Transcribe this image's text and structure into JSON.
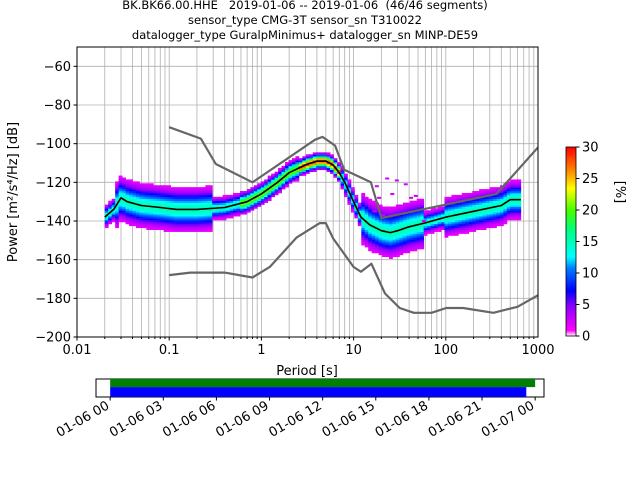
{
  "title_lines": [
    "BK.BK66.00.HHE   2019-01-06 -- 2019-01-06  (46/46 segments)",
    "sensor_type CMG-3T sensor_sn T310022",
    "datalogger_type GuralpMinimus+ datalogger_sn MINP-DE59"
  ],
  "colors": {
    "nlnm_nhnm": "#666666",
    "mode_line": "#000000",
    "coverage_all": "#008000",
    "coverage_used": "#0000ff"
  },
  "chart_data": [
    {
      "type": "heatmap",
      "name": "ppsd",
      "xlabel": "Period [s]",
      "ylabel": "Power [m²/s⁴/Hz] [dB]",
      "xscale": "log",
      "xlim": [
        0.01,
        1000
      ],
      "ylim": [
        -200,
        -50
      ],
      "x_ticks": [
        0.01,
        0.1,
        1,
        10,
        100,
        1000
      ],
      "x_tick_labels": [
        "0.01",
        "0.1",
        "1",
        "10",
        "100",
        "1000"
      ],
      "y_ticks": [
        -200,
        -180,
        -160,
        -140,
        -120,
        -100,
        -80,
        -60
      ],
      "y_tick_labels": [
        "−200",
        "−180",
        "−160",
        "−140",
        "−120",
        "−100",
        "−80",
        "−60"
      ],
      "grid": true,
      "colorbar": {
        "label": "[%]",
        "range": [
          0,
          30
        ],
        "ticks": [
          0,
          5,
          10,
          15,
          20,
          25,
          30
        ],
        "tick_labels": [
          "0",
          "5",
          "10",
          "15",
          "20",
          "25",
          "30"
        ]
      },
      "nhnm": {
        "period": [
          0.1,
          0.22,
          0.32,
          0.8,
          3.8,
          4.6,
          6.3,
          7.9,
          15.4,
          20,
          354.8,
          10000
        ],
        "power": [
          -91.5,
          -97.4,
          -110.5,
          -120,
          -98,
          -96.5,
          -101,
          -113.5,
          -120,
          -138.5,
          -126,
          -48.5
        ]
      },
      "nlnm": {
        "period": [
          0.1,
          0.17,
          0.4,
          0.8,
          1.24,
          2.4,
          4.3,
          5,
          6,
          10,
          12,
          15.6,
          21.9,
          31.6,
          45,
          70,
          101,
          154,
          328,
          600,
          10000
        ],
        "power": [
          -168,
          -166.7,
          -166.7,
          -169.2,
          -163.7,
          -148.6,
          -141.1,
          -141.1,
          -149,
          -163.8,
          -166.2,
          -162.1,
          -177.5,
          -185,
          -187.5,
          -187.5,
          -185,
          -185,
          -187.5,
          -184.4,
          -151.5
        ]
      },
      "mode": {
        "period": [
          0.02,
          0.025,
          0.03,
          0.035,
          0.05,
          0.08,
          0.12,
          0.2,
          0.4,
          0.7,
          1,
          1.5,
          2,
          3,
          4,
          5,
          6,
          7,
          8,
          10,
          12,
          15,
          20,
          25,
          30,
          40,
          60,
          100,
          200,
          400,
          500,
          650
        ],
        "power": [
          -138,
          -134,
          -128,
          -130,
          -132,
          -133,
          -134,
          -134,
          -133,
          -130,
          -126,
          -120,
          -115,
          -111,
          -109,
          -109,
          -111,
          -115,
          -120,
          -130,
          -138,
          -142,
          -145,
          -146,
          -145,
          -143,
          -141,
          -138,
          -135,
          -132,
          -129,
          -129
        ]
      }
    },
    {
      "type": "bar",
      "name": "data-coverage",
      "xlim": [
        "2019-01-06 00:00",
        "2019-01-07 00:30"
      ],
      "x_ticks": [
        "2019-01-06 00:00",
        "2019-01-06 03:00",
        "2019-01-06 06:00",
        "2019-01-06 09:00",
        "2019-01-06 12:00",
        "2019-01-06 15:00",
        "2019-01-06 18:00",
        "2019-01-06 21:00",
        "2019-01-07 00:00"
      ],
      "x_tick_labels": [
        "01-06 00",
        "01-06 03",
        "01-06 06",
        "01-06 09",
        "01-06 12",
        "01-06 15",
        "01-06 18",
        "01-06 21",
        "01-07 00"
      ],
      "series": [
        {
          "start": "2019-01-06 00:00",
          "end": "2019-01-07 00:00",
          "color": "#008000"
        },
        {
          "start": "2019-01-06 00:00",
          "end": "2019-01-06 23:30",
          "color": "#0000ff"
        }
      ]
    }
  ]
}
